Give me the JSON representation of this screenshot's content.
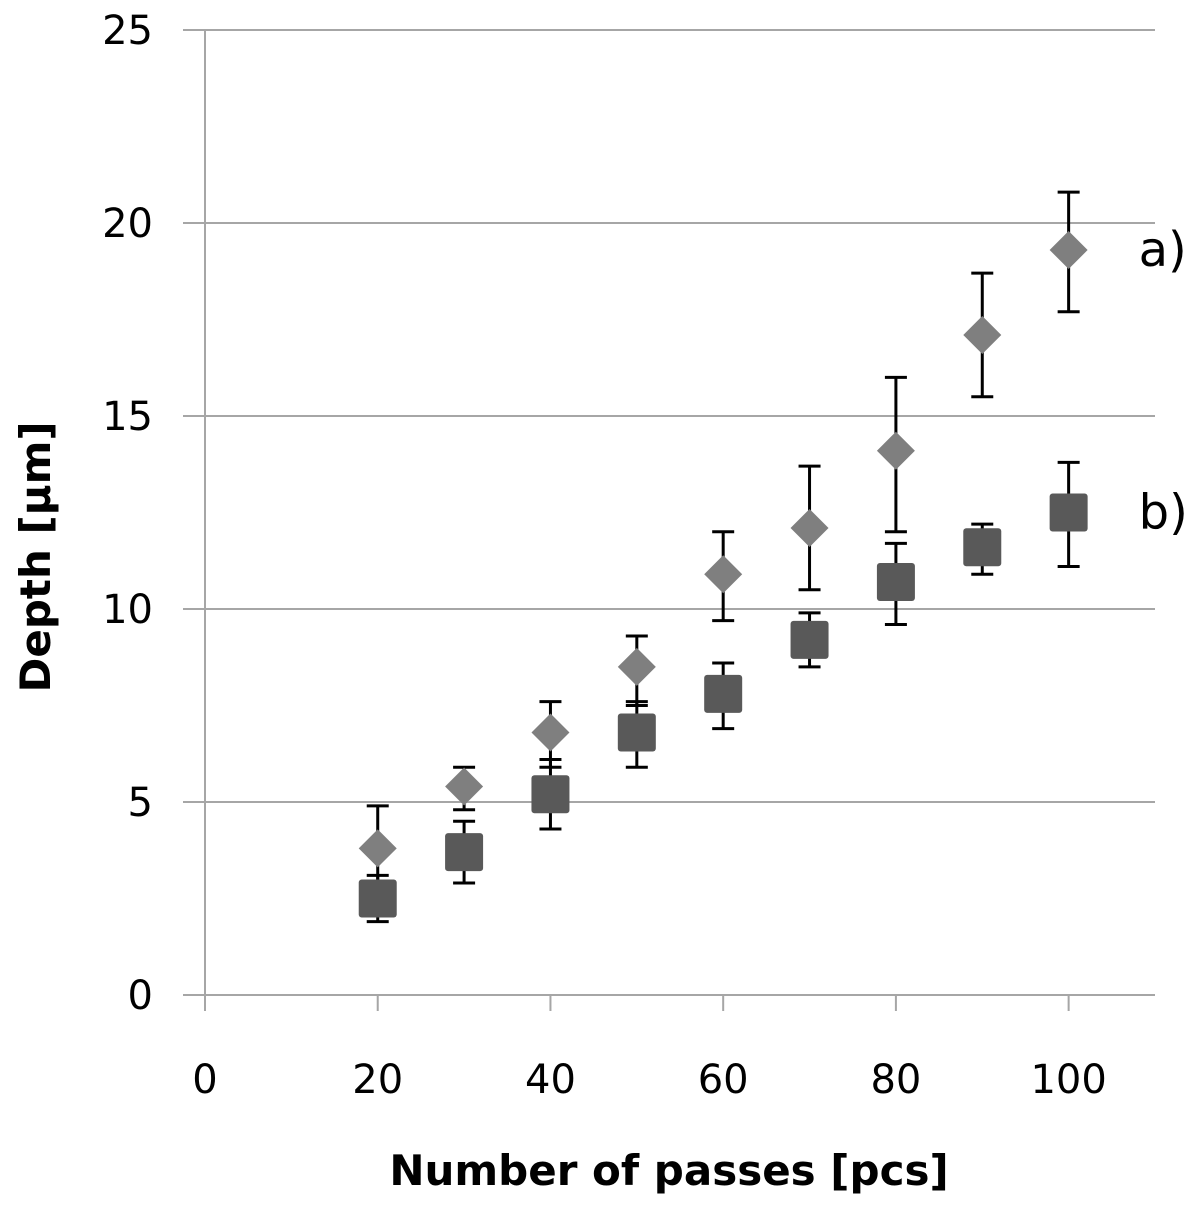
{
  "chart_data": {
    "type": "scatter",
    "title": "",
    "xlabel": "Number of passes [pcs]",
    "ylabel": "Depth [µm]",
    "xlim": [
      0,
      110
    ],
    "ylim": [
      0,
      25
    ],
    "x_ticks": [
      0,
      20,
      40,
      60,
      80,
      100
    ],
    "y_ticks": [
      0,
      5,
      10,
      15,
      20,
      25
    ],
    "grid": "horizontal",
    "series": [
      {
        "name": "a)",
        "marker": "diamond",
        "color": "#7f7f7f",
        "x": [
          20,
          30,
          40,
          50,
          60,
          70,
          80,
          90,
          100
        ],
        "y": [
          3.8,
          5.4,
          6.8,
          8.5,
          10.9,
          12.1,
          14.1,
          17.1,
          19.3
        ],
        "err_low": [
          1.0,
          0.6,
          0.9,
          1.0,
          1.2,
          1.6,
          2.1,
          1.6,
          1.6
        ],
        "err_high": [
          1.1,
          0.5,
          0.8,
          0.8,
          1.1,
          1.6,
          1.9,
          1.6,
          1.5
        ]
      },
      {
        "name": "b)",
        "marker": "square",
        "color": "#595959",
        "x": [
          20,
          30,
          40,
          50,
          60,
          70,
          80,
          90,
          100
        ],
        "y": [
          2.5,
          3.7,
          5.2,
          6.8,
          7.8,
          9.2,
          10.7,
          11.6,
          12.5
        ],
        "err_low": [
          0.6,
          0.8,
          0.9,
          0.9,
          0.9,
          0.7,
          1.1,
          0.7,
          1.4
        ],
        "err_high": [
          0.6,
          0.8,
          0.9,
          0.8,
          0.8,
          0.7,
          1.0,
          0.6,
          1.3
        ]
      }
    ]
  }
}
